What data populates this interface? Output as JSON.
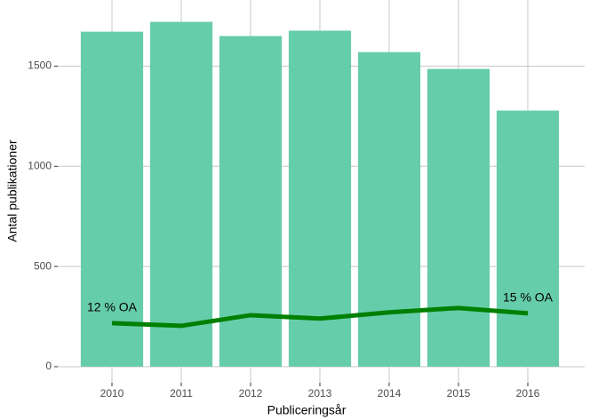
{
  "chart_data": {
    "type": "bar",
    "x_label": "Publiceringsår",
    "y_label": "Antal publikationer",
    "categories": [
      "2010",
      "2011",
      "2012",
      "2013",
      "2014",
      "2015",
      "2016"
    ],
    "values": [
      1672,
      1721,
      1650,
      1677,
      1570,
      1486,
      1278
    ],
    "color": "#66cdaa",
    "line": {
      "type": "line",
      "values": [
        217,
        204,
        257,
        240,
        271,
        293,
        266
      ],
      "color": "#008000"
    },
    "annotations": [
      "12 % OA",
      "15 % OA"
    ],
    "ylim": [
      -80,
      1830
    ],
    "yticks": [
      0,
      500,
      1000,
      1500
    ],
    "grid": true
  }
}
